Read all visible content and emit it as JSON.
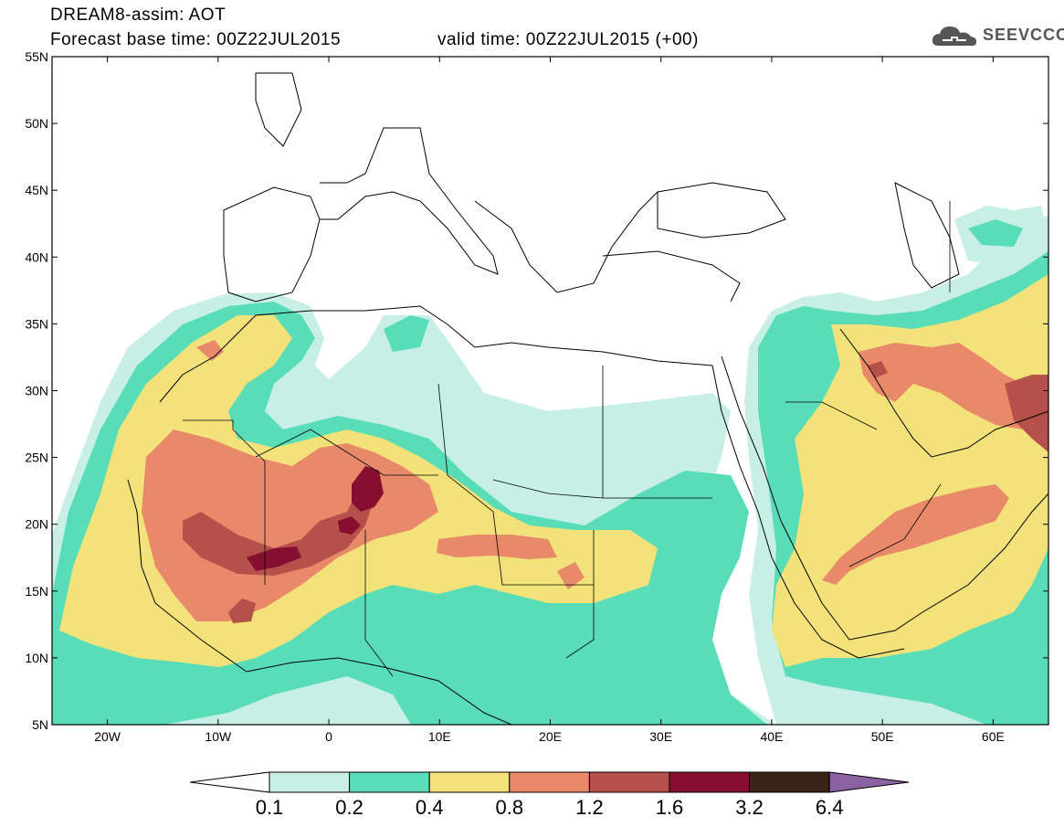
{
  "header": {
    "title": "DREAM8-assim: AOT",
    "base_time": "Forecast base time: 00Z22JUL2015",
    "valid_time": "valid time: 00Z22JUL2015 (+00)",
    "logo_text": "SEEVCCC"
  },
  "map": {
    "lon_range": [
      -25,
      65
    ],
    "lat_range": [
      5,
      55
    ],
    "lat_ticks": [
      "55N",
      "50N",
      "45N",
      "40N",
      "35N",
      "30N",
      "25N",
      "20N",
      "15N",
      "10N",
      "5N"
    ],
    "lon_ticks": [
      "20W",
      "10W",
      "0",
      "10E",
      "20E",
      "30E",
      "40E",
      "50E",
      "60E"
    ]
  },
  "colorbar": {
    "labels": [
      "0.1",
      "0.2",
      "0.4",
      "0.8",
      "1.2",
      "1.6",
      "3.2",
      "6.4"
    ],
    "colors": [
      "#ffffff",
      "#c7efe6",
      "#58ddb8",
      "#f3e27a",
      "#e8896a",
      "#b6504a",
      "#860f31",
      "#3a2316",
      "#8b62a4"
    ]
  }
}
